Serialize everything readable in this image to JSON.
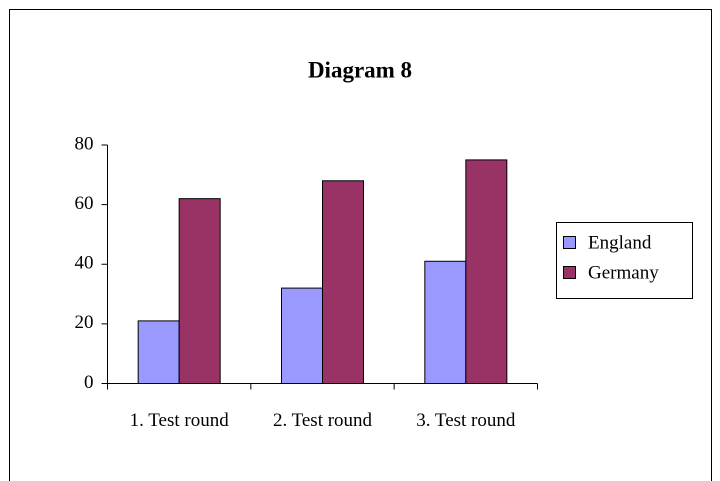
{
  "chart_data": {
    "type": "bar",
    "title": "Diagram 8",
    "categories": [
      "1. Test round",
      "2. Test round",
      "3. Test round"
    ],
    "series": [
      {
        "name": "England",
        "color": "#9999ff",
        "values": [
          21,
          32,
          41
        ]
      },
      {
        "name": "Germany",
        "color": "#993366",
        "values": [
          62,
          68,
          75
        ]
      }
    ],
    "ylim": [
      0,
      80
    ],
    "yticks": [
      0,
      20,
      40,
      60,
      80
    ],
    "grid": false,
    "legend": "right"
  }
}
